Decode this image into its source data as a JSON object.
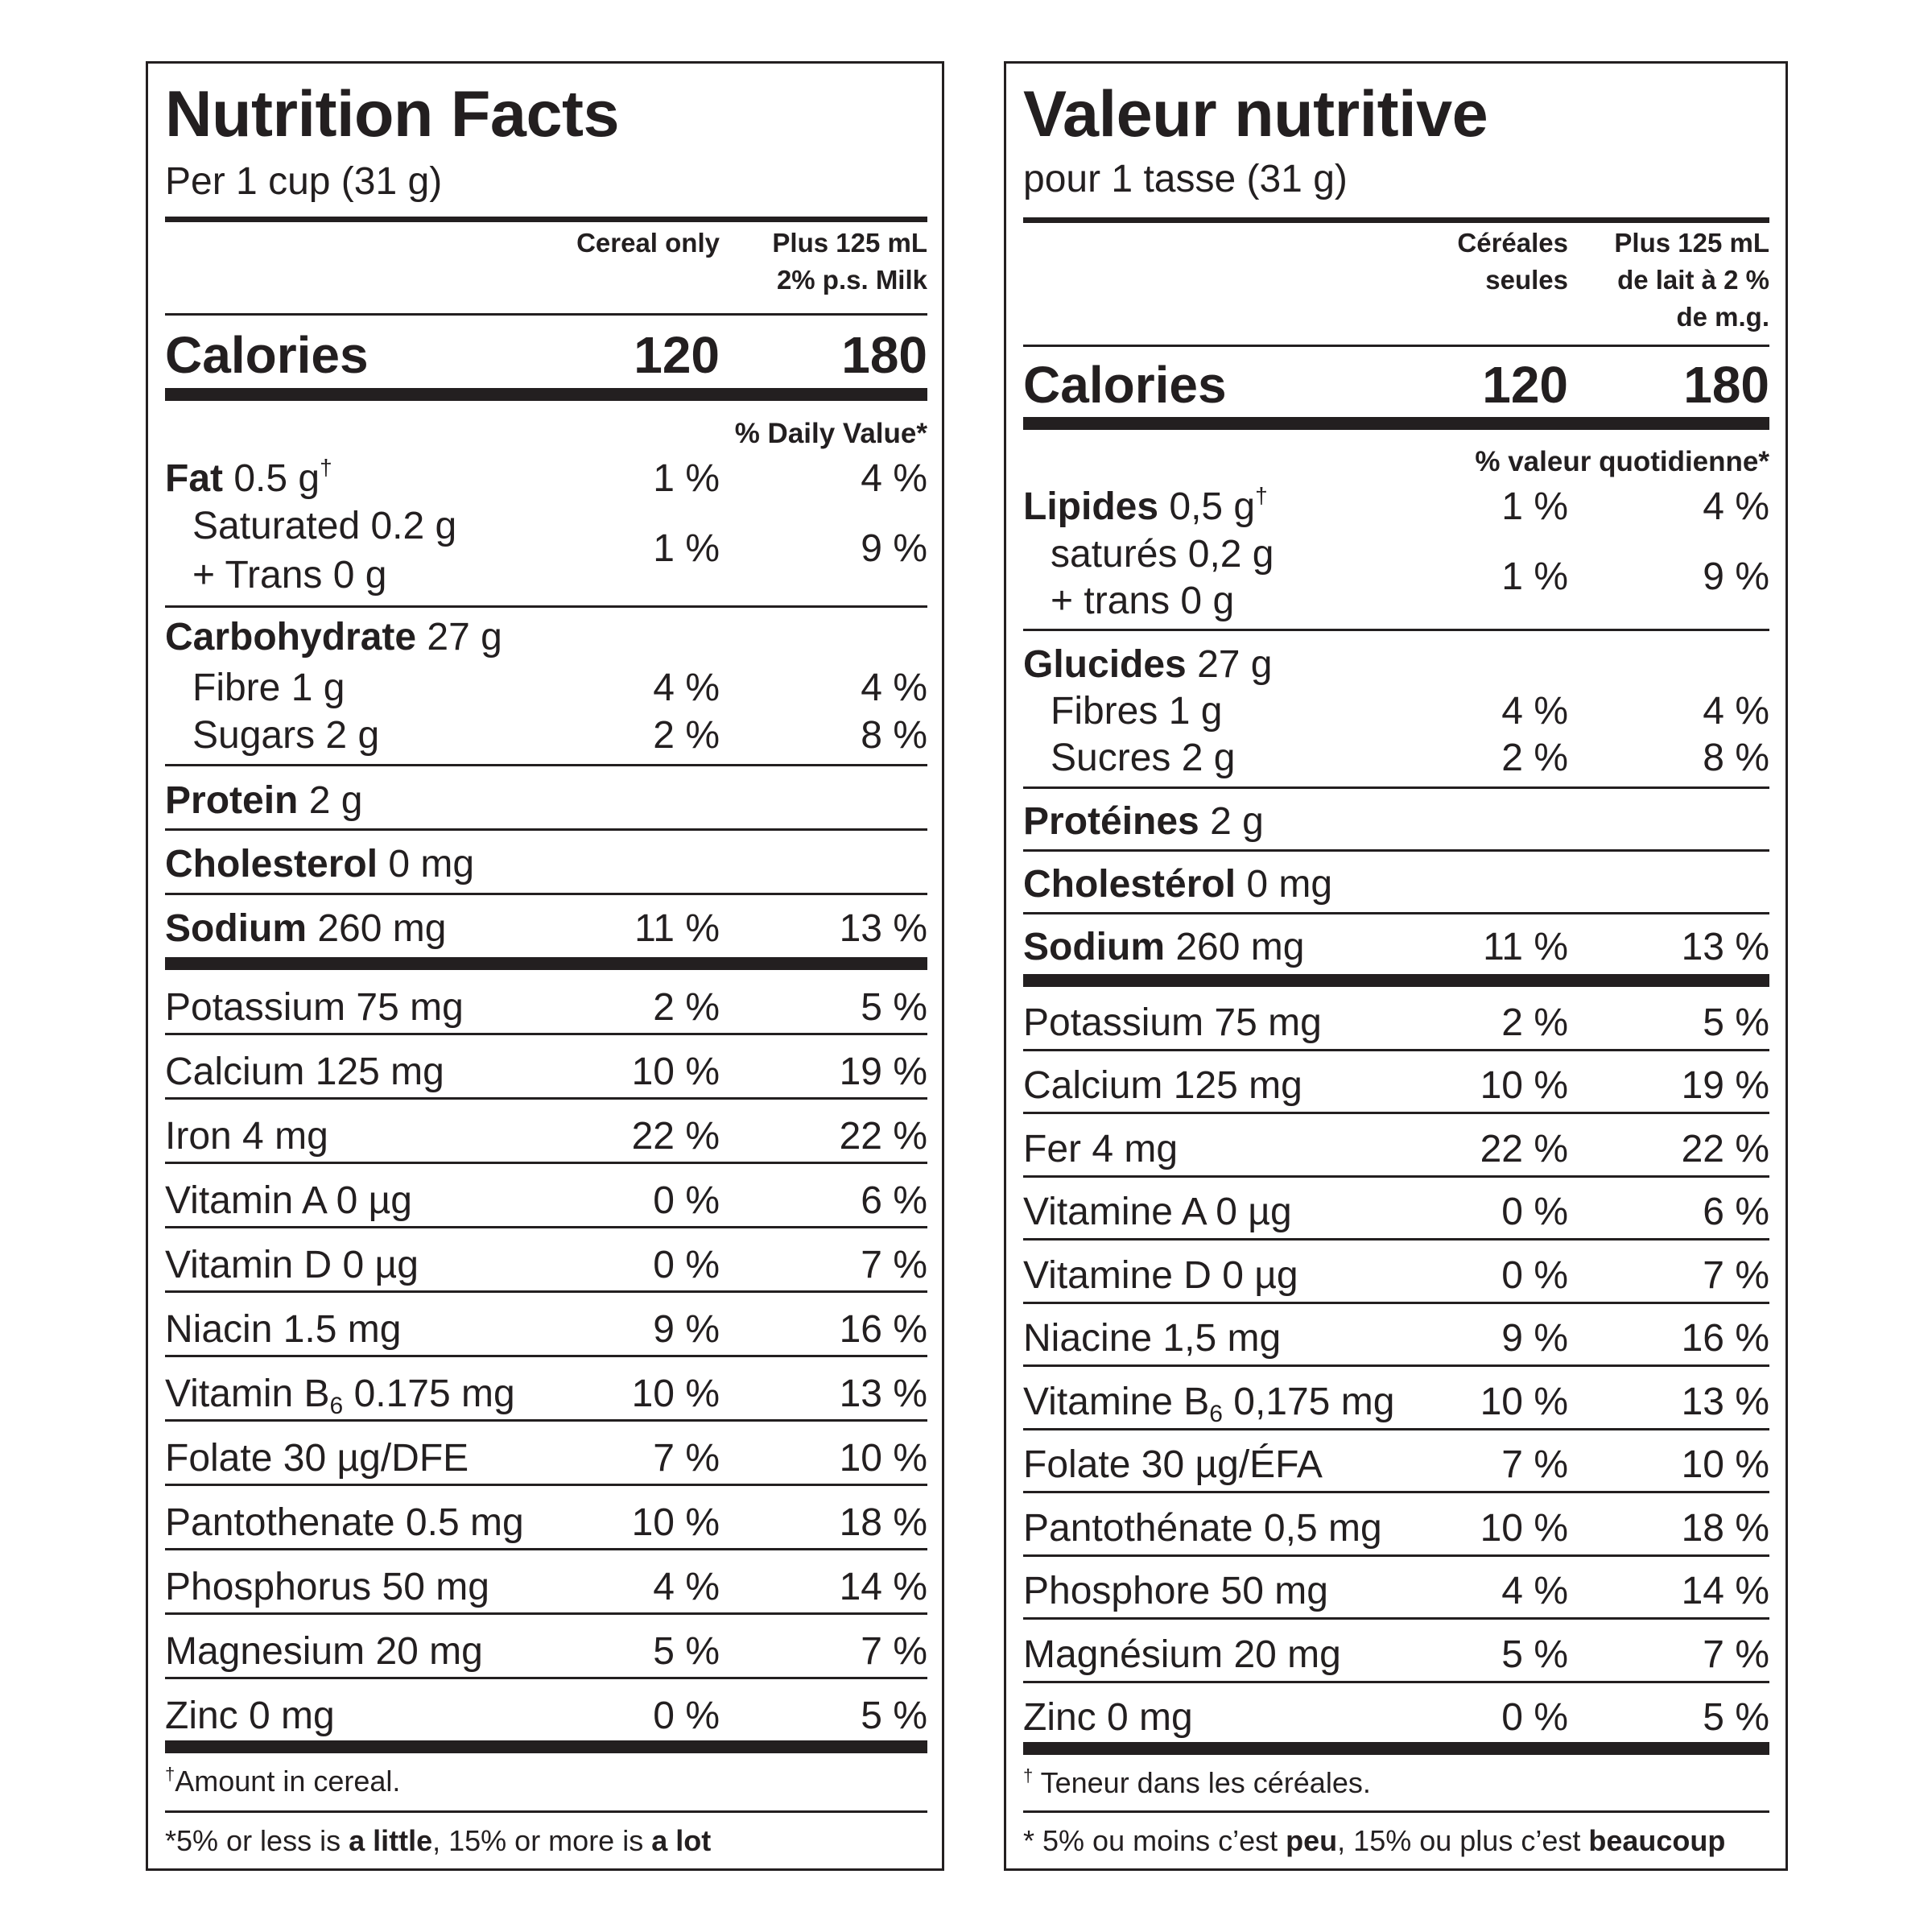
{
  "panels": [
    {
      "id": "en",
      "title": "Nutrition Facts",
      "serving": "Per 1 cup (31 g)",
      "column_headers": [
        {
          "lines": [
            "Cereal only"
          ]
        },
        {
          "lines": [
            "Plus 125 mL",
            "2% p.s. Milk"
          ]
        }
      ],
      "calories": {
        "label": "Calories",
        "values": [
          "120",
          "180"
        ]
      },
      "dv_header": "% Daily Value*",
      "rows": [
        {
          "bold": "Fat",
          "text": " 0.5 g",
          "dagger": "†",
          "values": [
            "1 %",
            "4 %"
          ]
        },
        {
          "indent": true,
          "text": "Saturated 0.2 g",
          "values": [
            "1 %",
            "9 %"
          ],
          "merged_with_next": true
        },
        {
          "indent": true,
          "text": "+ Trans 0 g",
          "values": []
        },
        {
          "bold": "Carbohydrate",
          "text": " 27 g",
          "values": []
        },
        {
          "indent": true,
          "text": "Fibre 1 g",
          "values": [
            "4 %",
            "4 %"
          ]
        },
        {
          "indent": true,
          "text": "Sugars 2 g",
          "values": [
            "2 %",
            "8 %"
          ]
        },
        {
          "bold": "Protein",
          "text": " 2 g",
          "values": []
        },
        {
          "bold": "Cholesterol",
          "text": " 0 mg",
          "values": []
        },
        {
          "bold": "Sodium",
          "text": " 260 mg",
          "values": [
            "11 %",
            "13 %"
          ]
        },
        {
          "text": "Potassium 75 mg",
          "values": [
            "2 %",
            "5 %"
          ]
        },
        {
          "text": "Calcium 125 mg",
          "values": [
            "10 %",
            "19 %"
          ]
        },
        {
          "text": "Iron 4 mg",
          "values": [
            "22 %",
            "22 %"
          ]
        },
        {
          "text": "Vitamin A 0 µg",
          "values": [
            "0 %",
            "6 %"
          ]
        },
        {
          "text": "Vitamin D 0 µg",
          "values": [
            "0 %",
            "7 %"
          ]
        },
        {
          "text": "Niacin 1.5 mg",
          "values": [
            "9 %",
            "16 %"
          ]
        },
        {
          "text": "Vitamin B",
          "sub": "6",
          "text_after": " 0.175 mg",
          "values": [
            "10 %",
            "13 %"
          ]
        },
        {
          "text": "Folate 30 µg/DFE",
          "values": [
            "7 %",
            "10 %"
          ]
        },
        {
          "text": "Pantothenate 0.5 mg",
          "values": [
            "10 %",
            "18 %"
          ]
        },
        {
          "text": "Phosphorus 50 mg",
          "values": [
            "4 %",
            "14 %"
          ]
        },
        {
          "text": "Magnesium 20 mg",
          "values": [
            "5 %",
            "7 %"
          ]
        },
        {
          "text": "Zinc 0 mg",
          "values": [
            "0 %",
            "5 %"
          ]
        }
      ],
      "footnote_dagger": {
        "dagger": "†",
        "text": "Amount in cereal."
      },
      "footnote_dv": [
        {
          "t": "*5% or less is "
        },
        {
          "t": "a little",
          "b": true
        },
        {
          "t": ", 15% or more is "
        },
        {
          "t": "a lot",
          "b": true
        }
      ]
    },
    {
      "id": "fr",
      "title": "Valeur nutritive",
      "serving": "pour 1 tasse (31 g)",
      "column_headers": [
        {
          "lines": [
            "Céréales",
            "seules"
          ]
        },
        {
          "lines": [
            "Plus 125 mL",
            "de lait à 2 %",
            "de m.g."
          ]
        }
      ],
      "calories": {
        "label": "Calories",
        "values": [
          "120",
          "180"
        ]
      },
      "dv_header": "% valeur quotidienne*",
      "rows": [
        {
          "bold": "Lipides",
          "text": " 0,5 g",
          "dagger": "†",
          "values": [
            "1 %",
            "4 %"
          ]
        },
        {
          "indent": true,
          "text": "saturés 0,2 g",
          "values": [
            "1 %",
            "9 %"
          ],
          "merged_with_next": true
        },
        {
          "indent": true,
          "text": "+ trans 0 g",
          "values": []
        },
        {
          "bold": "Glucides",
          "text": " 27 g",
          "values": []
        },
        {
          "indent": true,
          "text": "Fibres 1 g",
          "values": [
            "4 %",
            "4 %"
          ]
        },
        {
          "indent": true,
          "text": "Sucres 2 g",
          "values": [
            "2 %",
            "8 %"
          ]
        },
        {
          "bold": "Protéines",
          "text": " 2 g",
          "values": []
        },
        {
          "bold": "Cholestérol",
          "text": " 0 mg",
          "values": []
        },
        {
          "bold": "Sodium",
          "text": " 260 mg",
          "values": [
            "11 %",
            "13 %"
          ]
        },
        {
          "text": "Potassium 75 mg",
          "values": [
            "2 %",
            "5 %"
          ]
        },
        {
          "text": "Calcium 125 mg",
          "values": [
            "10 %",
            "19 %"
          ]
        },
        {
          "text": "Fer 4 mg",
          "values": [
            "22 %",
            "22 %"
          ]
        },
        {
          "text": "Vitamine A 0 µg",
          "values": [
            "0 %",
            "6 %"
          ]
        },
        {
          "text": "Vitamine D 0 µg",
          "values": [
            "0 %",
            "7 %"
          ]
        },
        {
          "text": "Niacine 1,5 mg",
          "values": [
            "9 %",
            "16 %"
          ]
        },
        {
          "text": "Vitamine B",
          "sub": "6",
          "text_after": " 0,175 mg",
          "values": [
            "10 %",
            "13 %"
          ]
        },
        {
          "text": "Folate 30 µg/ÉFA",
          "values": [
            "7 %",
            "10 %"
          ]
        },
        {
          "text": "Pantothénate 0,5 mg",
          "values": [
            "10 %",
            "18 %"
          ]
        },
        {
          "text": "Phosphore 50 mg",
          "values": [
            "4 %",
            "14 %"
          ]
        },
        {
          "text": "Magnésium 20 mg",
          "values": [
            "5 %",
            "7 %"
          ]
        },
        {
          "text": "Zinc 0 mg",
          "values": [
            "0 %",
            "5 %"
          ]
        }
      ],
      "footnote_dagger": {
        "dagger": "†",
        "text": " Teneur dans les céréales."
      },
      "footnote_dv": [
        {
          "t": "* 5% ou moins c’est "
        },
        {
          "t": "peu",
          "b": true
        },
        {
          "t": ", 15% ou plus c’est "
        },
        {
          "t": "beaucoup",
          "b": true
        }
      ]
    }
  ],
  "colors": {
    "ink": "#231f20",
    "background": "#ffffff"
  }
}
